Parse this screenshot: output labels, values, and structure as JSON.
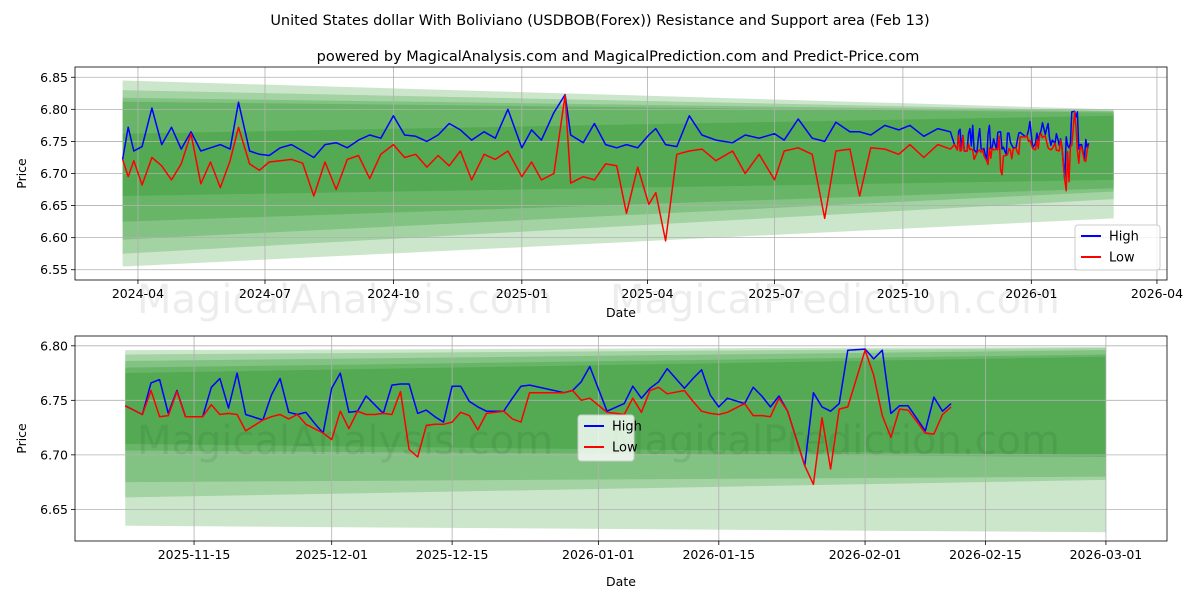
{
  "chart_data": [
    {
      "type": "line",
      "title": "United States dollar With Boliviano (USDBOB(Forex)) Resistance and Support area (Feb 13)",
      "subtitle": "powered by MagicalAnalysis.com and MagicalPrediction.com and Predict-Price.com",
      "xlabel": "Date",
      "ylabel": "Price",
      "ylim": [
        6.534,
        6.866
      ],
      "xlim": [
        "2024-02-16",
        "2026-04-08"
      ],
      "yticks": [
        "6.55",
        "6.60",
        "6.65",
        "6.70",
        "6.75",
        "6.80",
        "6.85"
      ],
      "ytick_values": [
        6.55,
        6.6,
        6.65,
        6.7,
        6.75,
        6.8,
        6.85
      ],
      "xticks": [
        "2024-04",
        "2024-07",
        "2024-10",
        "2025-01",
        "2025-04",
        "2025-07",
        "2025-10",
        "2026-01",
        "2026-04"
      ],
      "xtick_dates": [
        "2024-04-01",
        "2024-07-01",
        "2024-10-01",
        "2025-01-01",
        "2025-04-01",
        "2025-07-01",
        "2025-10-01",
        "2026-01-01",
        "2026-04-01"
      ],
      "grid": true,
      "legend": {
        "placement": "lower-right",
        "entries": [
          "High",
          "Low"
        ]
      },
      "series_colors": {
        "High": "#0000ff",
        "Low": "#ff0000"
      },
      "band_color": "#008000",
      "band_start": "2024-03-21",
      "band_end": "2026-03-01",
      "bands": [
        {
          "upper": [
            6.845,
            6.8
          ],
          "lower": [
            6.555,
            6.63
          ]
        },
        {
          "upper": [
            6.83,
            6.798
          ],
          "lower": [
            6.575,
            6.66
          ]
        },
        {
          "upper": [
            6.818,
            6.797
          ],
          "lower": [
            6.597,
            6.672
          ]
        },
        {
          "upper": [
            6.812,
            6.795
          ],
          "lower": [
            6.625,
            6.677
          ]
        },
        {
          "upper": [
            6.762,
            6.79
          ],
          "lower": [
            6.665,
            6.69
          ]
        }
      ],
      "points_note": "[date, high, low]; continues with the recent data of chart 2",
      "points": [
        [
          "2024-03-21",
          6.722,
          6.722
        ],
        [
          "2024-03-25",
          6.772,
          6.695
        ],
        [
          "2024-03-29",
          6.735,
          6.72
        ],
        [
          "2024-04-04",
          6.742,
          6.682
        ],
        [
          "2024-04-11",
          6.802,
          6.725
        ],
        [
          "2024-04-18",
          6.745,
          6.712
        ],
        [
          "2024-04-25",
          6.772,
          6.69
        ],
        [
          "2024-05-02",
          6.738,
          6.715
        ],
        [
          "2024-05-09",
          6.765,
          6.762
        ],
        [
          "2024-05-16",
          6.735,
          6.684
        ],
        [
          "2024-05-23",
          6.74,
          6.718
        ],
        [
          "2024-05-30",
          6.745,
          6.678
        ],
        [
          "2024-06-06",
          6.738,
          6.72
        ],
        [
          "2024-06-12",
          6.811,
          6.772
        ],
        [
          "2024-06-20",
          6.735,
          6.715
        ],
        [
          "2024-06-27",
          6.73,
          6.705
        ],
        [
          "2024-07-04",
          6.728,
          6.718
        ],
        [
          "2024-07-12",
          6.74,
          6.72
        ],
        [
          "2024-07-20",
          6.745,
          6.722
        ],
        [
          "2024-07-28",
          6.735,
          6.716
        ],
        [
          "2024-08-05",
          6.725,
          6.665
        ],
        [
          "2024-08-13",
          6.745,
          6.718
        ],
        [
          "2024-08-21",
          6.748,
          6.675
        ],
        [
          "2024-08-29",
          6.74,
          6.722
        ],
        [
          "2024-09-06",
          6.752,
          6.728
        ],
        [
          "2024-09-14",
          6.76,
          6.692
        ],
        [
          "2024-09-22",
          6.755,
          6.73
        ],
        [
          "2024-10-01",
          6.79,
          6.745
        ],
        [
          "2024-10-09",
          6.76,
          6.725
        ],
        [
          "2024-10-17",
          6.758,
          6.73
        ],
        [
          "2024-10-25",
          6.75,
          6.71
        ],
        [
          "2024-11-02",
          6.76,
          6.728
        ],
        [
          "2024-11-10",
          6.778,
          6.712
        ],
        [
          "2024-11-18",
          6.768,
          6.735
        ],
        [
          "2024-11-26",
          6.752,
          6.69
        ],
        [
          "2024-12-05",
          6.765,
          6.73
        ],
        [
          "2024-12-13",
          6.755,
          6.722
        ],
        [
          "2024-12-22",
          6.8,
          6.735
        ],
        [
          "2025-01-01",
          6.74,
          6.695
        ],
        [
          "2025-01-08",
          6.768,
          6.718
        ],
        [
          "2025-01-15",
          6.752,
          6.69
        ],
        [
          "2025-01-24",
          6.795,
          6.7
        ],
        [
          "2025-02-01",
          6.823,
          6.822
        ],
        [
          "2025-02-05",
          6.76,
          6.685
        ],
        [
          "2025-02-14",
          6.748,
          6.695
        ],
        [
          "2025-02-22",
          6.778,
          6.69
        ],
        [
          "2025-03-02",
          6.745,
          6.715
        ],
        [
          "2025-03-10",
          6.74,
          6.712
        ],
        [
          "2025-03-17",
          6.745,
          6.638
        ],
        [
          "2025-03-25",
          6.74,
          6.71
        ],
        [
          "2025-04-02",
          6.76,
          6.652
        ],
        [
          "2025-04-07",
          6.77,
          6.67
        ],
        [
          "2025-04-14",
          6.745,
          6.595
        ],
        [
          "2025-04-22",
          6.742,
          6.73
        ],
        [
          "2025-05-01",
          6.79,
          6.735
        ],
        [
          "2025-05-10",
          6.76,
          6.738
        ],
        [
          "2025-05-20",
          6.752,
          6.72
        ],
        [
          "2025-06-01",
          6.748,
          6.735
        ],
        [
          "2025-06-10",
          6.76,
          6.7
        ],
        [
          "2025-06-20",
          6.755,
          6.73
        ],
        [
          "2025-07-01",
          6.762,
          6.69
        ],
        [
          "2025-07-08",
          6.752,
          6.735
        ],
        [
          "2025-07-18",
          6.785,
          6.74
        ],
        [
          "2025-07-28",
          6.755,
          6.73
        ],
        [
          "2025-08-06",
          6.75,
          6.63
        ],
        [
          "2025-08-14",
          6.78,
          6.735
        ],
        [
          "2025-08-24",
          6.765,
          6.738
        ],
        [
          "2025-08-31",
          6.765,
          6.665
        ],
        [
          "2025-09-08",
          6.76,
          6.74
        ],
        [
          "2025-09-18",
          6.775,
          6.738
        ],
        [
          "2025-09-28",
          6.768,
          6.73
        ],
        [
          "2025-10-06",
          6.775,
          6.745
        ],
        [
          "2025-10-16",
          6.758,
          6.725
        ],
        [
          "2025-10-26",
          6.77,
          6.745
        ],
        [
          "2025-11-04",
          6.765,
          6.738
        ]
      ],
      "watermarks": [
        "MagicalAnalysis.com",
        "MagicalPrediction.com"
      ]
    },
    {
      "type": "line",
      "xlabel": "Date",
      "ylabel": "Price",
      "ylim": [
        6.621,
        6.809
      ],
      "xlim": [
        "2025-11-01",
        "2026-03-08"
      ],
      "yticks": [
        "6.65",
        "6.70",
        "6.75",
        "6.80"
      ],
      "ytick_values": [
        6.65,
        6.7,
        6.75,
        6.8
      ],
      "xticks": [
        "2025-11-15",
        "2025-12-01",
        "2025-12-15",
        "2026-01-01",
        "2026-01-15",
        "2026-02-01",
        "2026-02-15",
        "2026-03-01"
      ],
      "grid": true,
      "legend": {
        "placement": "center",
        "entries": [
          "High",
          "Low"
        ]
      },
      "series_colors": {
        "High": "#0000ff",
        "Low": "#ff0000"
      },
      "band_color": "#008000",
      "band_start": "2025-11-07",
      "band_end": "2026-03-01",
      "bands": [
        {
          "upper": [
            6.796,
            6.799
          ],
          "lower": [
            6.635,
            6.629
          ]
        },
        {
          "upper": [
            6.792,
            6.798
          ],
          "lower": [
            6.661,
            6.677
          ]
        },
        {
          "upper": [
            6.786,
            6.796
          ],
          "lower": [
            6.675,
            6.68
          ]
        },
        {
          "upper": [
            6.78,
            6.792
          ],
          "lower": [
            6.704,
            6.698
          ]
        },
        {
          "upper": [
            6.775,
            6.79
          ],
          "lower": [
            6.71,
            6.7
          ]
        }
      ],
      "points": [
        [
          "2025-11-07",
          6.745,
          6.745
        ],
        [
          "2025-11-09",
          6.737,
          6.737
        ],
        [
          "2025-11-10",
          6.766,
          6.759
        ],
        [
          "2025-11-11",
          6.769,
          6.735
        ],
        [
          "2025-11-12",
          6.738,
          6.736
        ],
        [
          "2025-11-13",
          6.759,
          6.758
        ],
        [
          "2025-11-14",
          6.735,
          6.735
        ],
        [
          "2025-11-16",
          6.735,
          6.735
        ],
        [
          "2025-11-17",
          6.762,
          6.746
        ],
        [
          "2025-11-18",
          6.77,
          6.737
        ],
        [
          "2025-11-19",
          6.743,
          6.738
        ],
        [
          "2025-11-20",
          6.775,
          6.737
        ],
        [
          "2025-11-21",
          6.737,
          6.722
        ],
        [
          "2025-11-23",
          6.732,
          6.732
        ],
        [
          "2025-11-24",
          6.755,
          6.735
        ],
        [
          "2025-11-25",
          6.77,
          6.737
        ],
        [
          "2025-11-26",
          6.739,
          6.733
        ],
        [
          "2025-11-27",
          6.737,
          6.737
        ],
        [
          "2025-11-28",
          6.739,
          6.728
        ],
        [
          "2025-11-29",
          6.729,
          6.724
        ],
        [
          "2025-11-30",
          6.72,
          6.72
        ],
        [
          "2025-12-01",
          6.761,
          6.714
        ],
        [
          "2025-12-02",
          6.775,
          6.74
        ],
        [
          "2025-12-03",
          6.739,
          6.724
        ],
        [
          "2025-12-04",
          6.74,
          6.74
        ],
        [
          "2025-12-05",
          6.754,
          6.737
        ],
        [
          "2025-12-06",
          6.746,
          6.737
        ],
        [
          "2025-12-07",
          6.738,
          6.738
        ],
        [
          "2025-12-08",
          6.764,
          6.737
        ],
        [
          "2025-12-09",
          6.765,
          6.758
        ],
        [
          "2025-12-10",
          6.765,
          6.705
        ],
        [
          "2025-12-11",
          6.738,
          6.698
        ],
        [
          "2025-12-12",
          6.741,
          6.727
        ],
        [
          "2025-12-13",
          6.735,
          6.728
        ],
        [
          "2025-12-14",
          6.73,
          6.728
        ],
        [
          "2025-12-15",
          6.763,
          6.73
        ],
        [
          "2025-12-16",
          6.763,
          6.739
        ],
        [
          "2025-12-17",
          6.749,
          6.736
        ],
        [
          "2025-12-18",
          6.744,
          6.723
        ],
        [
          "2025-12-19",
          6.74,
          6.738
        ],
        [
          "2025-12-21",
          6.74,
          6.74
        ],
        [
          "2025-12-22",
          6.752,
          6.733
        ],
        [
          "2025-12-23",
          6.763,
          6.73
        ],
        [
          "2025-12-24",
          6.764,
          6.757
        ],
        [
          "2025-12-28",
          6.757,
          6.757
        ],
        [
          "2025-12-29",
          6.759,
          6.759
        ],
        [
          "2025-12-30",
          6.767,
          6.75
        ],
        [
          "2025-12-31",
          6.781,
          6.752
        ],
        [
          "2026-01-02",
          6.74,
          6.739
        ],
        [
          "2026-01-04",
          6.747,
          6.737
        ],
        [
          "2026-01-05",
          6.763,
          6.752
        ],
        [
          "2026-01-06",
          6.752,
          6.739
        ],
        [
          "2026-01-07",
          6.761,
          6.759
        ],
        [
          "2026-01-08",
          6.767,
          6.762
        ],
        [
          "2026-01-09",
          6.779,
          6.756
        ],
        [
          "2026-01-11",
          6.761,
          6.759
        ],
        [
          "2026-01-12",
          6.77,
          6.749
        ],
        [
          "2026-01-13",
          6.778,
          6.74
        ],
        [
          "2026-01-14",
          6.755,
          6.738
        ],
        [
          "2026-01-15",
          6.744,
          6.737
        ],
        [
          "2026-01-16",
          6.752,
          6.739
        ],
        [
          "2026-01-18",
          6.747,
          6.747
        ],
        [
          "2026-01-19",
          6.762,
          6.736
        ],
        [
          "2026-01-20",
          6.754,
          6.736
        ],
        [
          "2026-01-21",
          6.744,
          6.735
        ],
        [
          "2026-01-22",
          6.754,
          6.752
        ],
        [
          "2026-01-23",
          6.74,
          6.74
        ],
        [
          "2026-01-25",
          6.69,
          6.69
        ],
        [
          "2026-01-26",
          6.757,
          6.673
        ],
        [
          "2026-01-27",
          6.744,
          6.734
        ],
        [
          "2026-01-28",
          6.74,
          6.687
        ],
        [
          "2026-01-29",
          6.747,
          6.742
        ],
        [
          "2026-01-30",
          6.796,
          6.744
        ],
        [
          "2026-02-01",
          6.797,
          6.796
        ],
        [
          "2026-02-02",
          6.788,
          6.773
        ],
        [
          "2026-02-03",
          6.796,
          6.736
        ],
        [
          "2026-02-04",
          6.738,
          6.716
        ],
        [
          "2026-02-05",
          6.745,
          6.742
        ],
        [
          "2026-02-06",
          6.745,
          6.741
        ],
        [
          "2026-02-08",
          6.722,
          6.72
        ],
        [
          "2026-02-09",
          6.753,
          6.719
        ],
        [
          "2026-02-10",
          6.74,
          6.737
        ],
        [
          "2026-02-11",
          6.747,
          6.744
        ]
      ],
      "watermarks": [
        "MagicalAnalysis.com",
        "MagicalPrediction.com"
      ]
    }
  ]
}
